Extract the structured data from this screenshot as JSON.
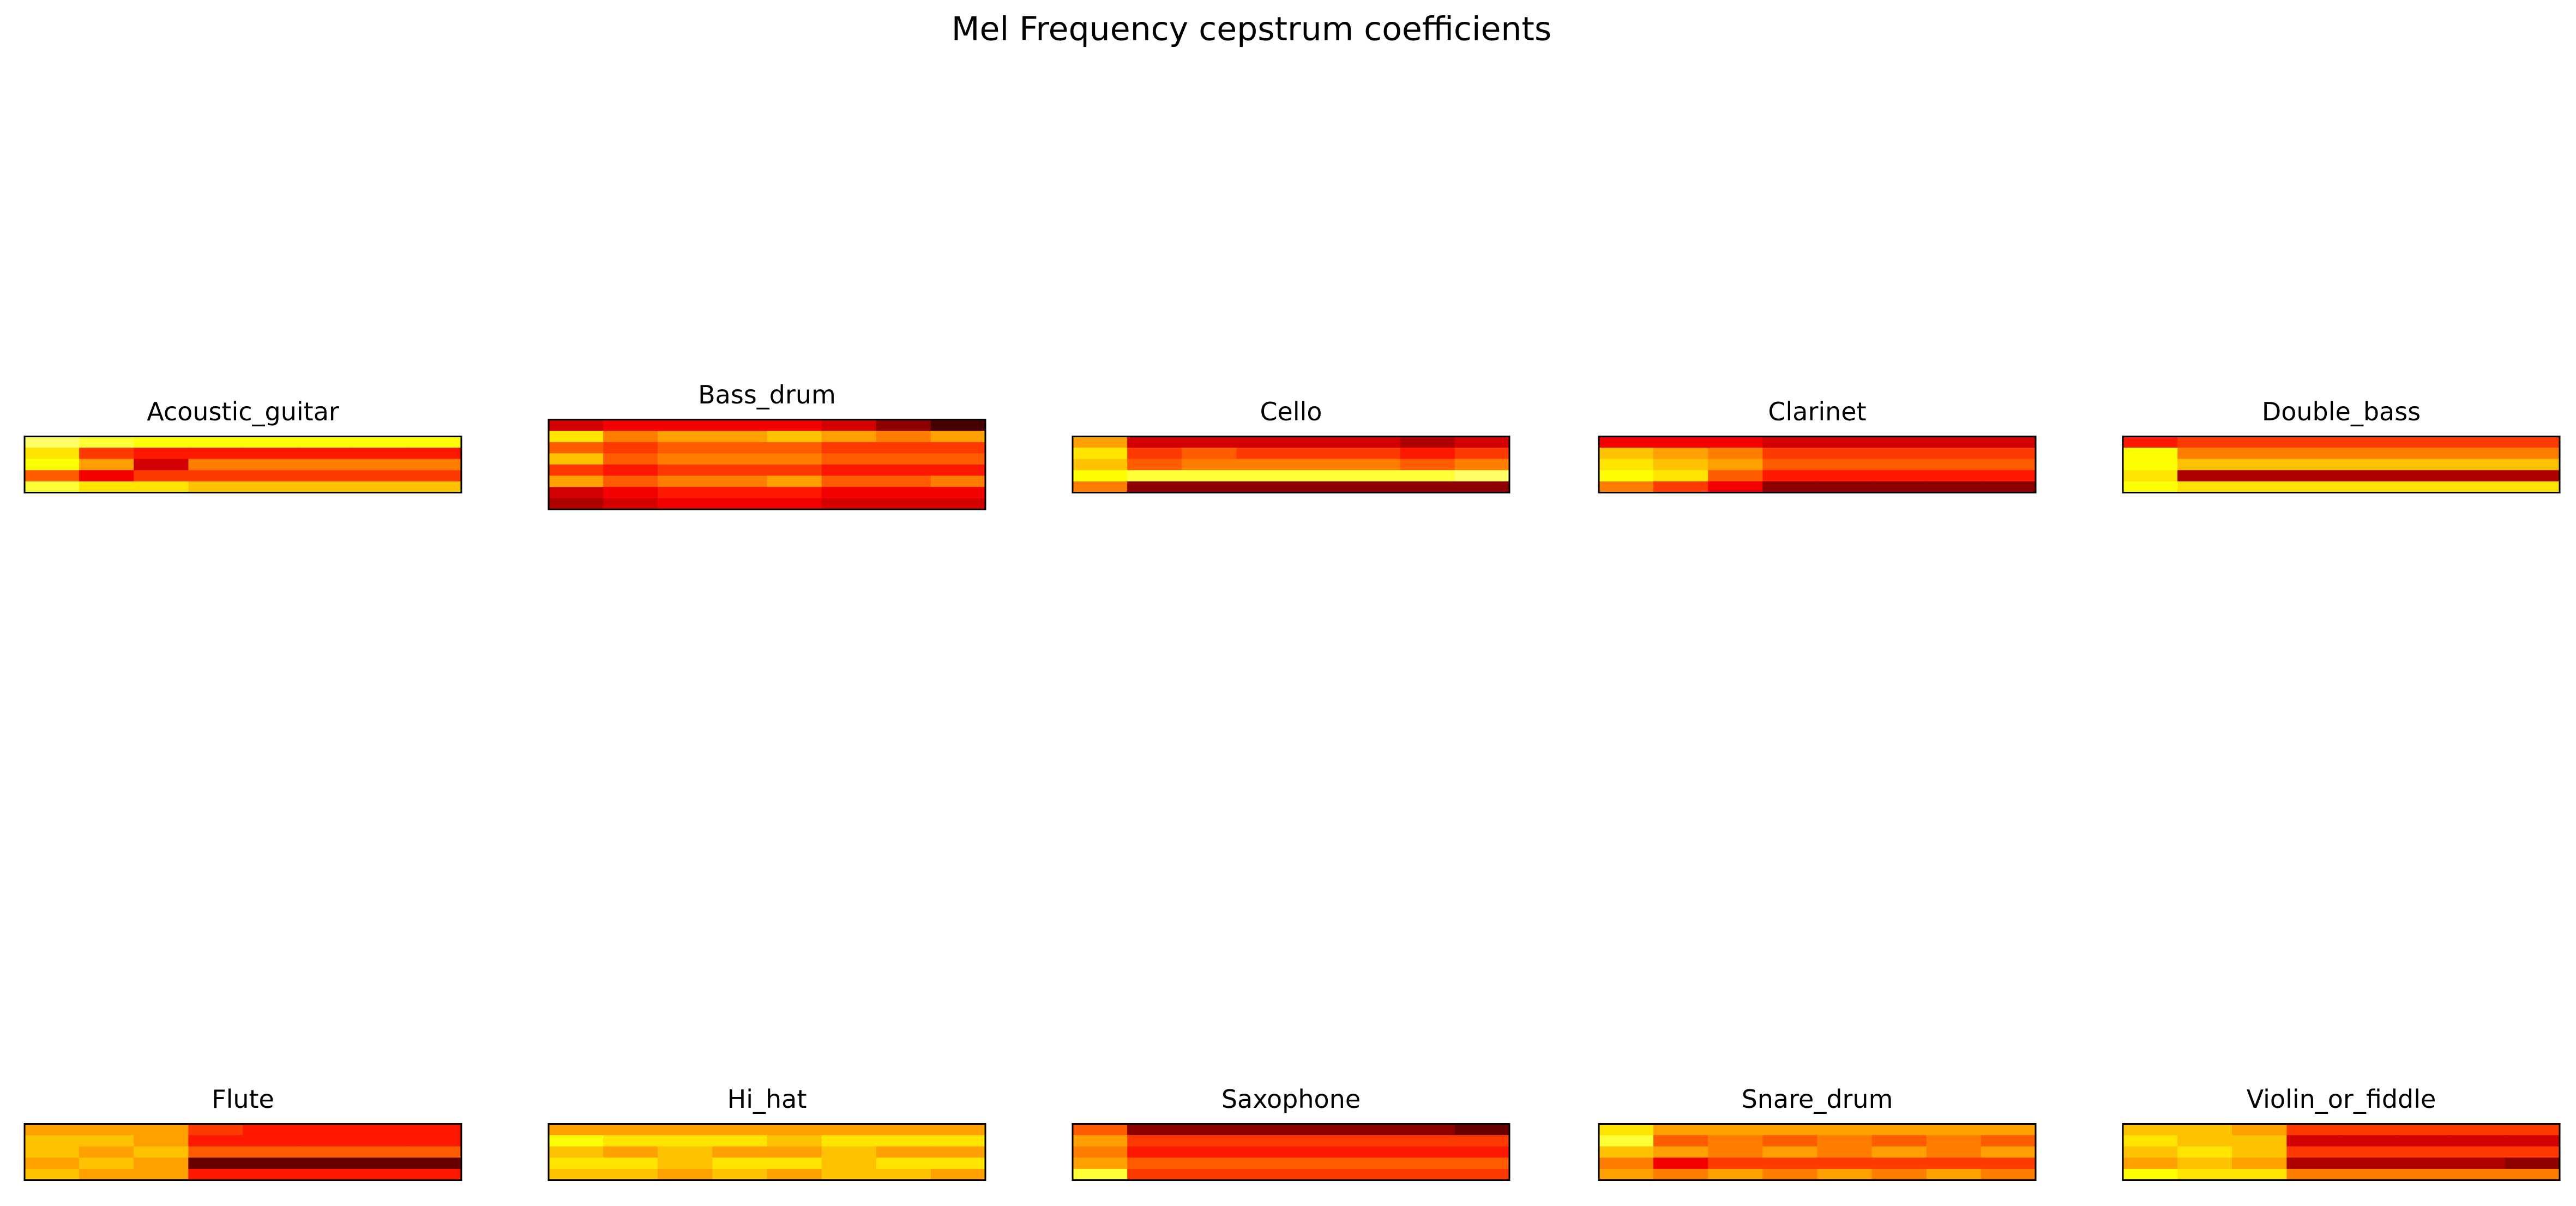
{
  "title": "Mel Frequency cepstrum coefficients",
  "chart_data": [
    {
      "type": "heatmap",
      "cmap": "hot",
      "title": "Acoustic_guitar",
      "values": [
        [
          0.85,
          0.8,
          0.75,
          0.75,
          0.75,
          0.75,
          0.75,
          0.75
        ],
        [
          0.7,
          0.45,
          0.4,
          0.4,
          0.4,
          0.4,
          0.4,
          0.4
        ],
        [
          0.75,
          0.6,
          0.3,
          0.55,
          0.55,
          0.55,
          0.55,
          0.55
        ],
        [
          0.5,
          0.35,
          0.45,
          0.45,
          0.45,
          0.45,
          0.45,
          0.45
        ],
        [
          0.8,
          0.7,
          0.7,
          0.65,
          0.65,
          0.65,
          0.65,
          0.65
        ]
      ]
    },
    {
      "type": "heatmap",
      "cmap": "hot",
      "title": "Bass_drum",
      "values": [
        [
          0.3,
          0.35,
          0.35,
          0.35,
          0.35,
          0.3,
          0.2,
          0.1
        ],
        [
          0.7,
          0.55,
          0.6,
          0.6,
          0.65,
          0.6,
          0.55,
          0.6
        ],
        [
          0.5,
          0.45,
          0.5,
          0.5,
          0.5,
          0.45,
          0.45,
          0.45
        ],
        [
          0.65,
          0.5,
          0.55,
          0.55,
          0.55,
          0.5,
          0.5,
          0.5
        ],
        [
          0.45,
          0.4,
          0.45,
          0.45,
          0.45,
          0.4,
          0.4,
          0.4
        ],
        [
          0.6,
          0.5,
          0.55,
          0.55,
          0.6,
          0.5,
          0.5,
          0.55
        ],
        [
          0.3,
          0.35,
          0.4,
          0.4,
          0.4,
          0.35,
          0.35,
          0.35
        ],
        [
          0.25,
          0.3,
          0.35,
          0.35,
          0.35,
          0.3,
          0.3,
          0.3
        ]
      ]
    },
    {
      "type": "heatmap",
      "cmap": "hot",
      "title": "Cello",
      "values": [
        [
          0.6,
          0.3,
          0.3,
          0.3,
          0.3,
          0.3,
          0.25,
          0.3
        ],
        [
          0.7,
          0.45,
          0.5,
          0.45,
          0.45,
          0.45,
          0.4,
          0.45
        ],
        [
          0.65,
          0.5,
          0.55,
          0.55,
          0.55,
          0.55,
          0.5,
          0.55
        ],
        [
          0.75,
          0.8,
          0.8,
          0.8,
          0.8,
          0.8,
          0.8,
          0.85
        ],
        [
          0.55,
          0.2,
          0.2,
          0.2,
          0.2,
          0.2,
          0.2,
          0.2
        ]
      ]
    },
    {
      "type": "heatmap",
      "cmap": "hot",
      "title": "Clarinet",
      "values": [
        [
          0.35,
          0.35,
          0.35,
          0.3,
          0.3,
          0.3,
          0.3,
          0.3
        ],
        [
          0.65,
          0.6,
          0.55,
          0.45,
          0.45,
          0.45,
          0.45,
          0.45
        ],
        [
          0.7,
          0.65,
          0.6,
          0.5,
          0.5,
          0.5,
          0.5,
          0.5
        ],
        [
          0.75,
          0.7,
          0.5,
          0.4,
          0.4,
          0.4,
          0.4,
          0.4
        ],
        [
          0.55,
          0.45,
          0.35,
          0.2,
          0.2,
          0.2,
          0.2,
          0.2
        ]
      ]
    },
    {
      "type": "heatmap",
      "cmap": "hot",
      "title": "Double_bass",
      "values": [
        [
          0.4,
          0.45,
          0.45,
          0.45,
          0.45,
          0.45,
          0.45,
          0.45
        ],
        [
          0.75,
          0.55,
          0.55,
          0.55,
          0.55,
          0.55,
          0.55,
          0.55
        ],
        [
          0.75,
          0.65,
          0.65,
          0.65,
          0.65,
          0.65,
          0.65,
          0.65
        ],
        [
          0.7,
          0.25,
          0.25,
          0.25,
          0.25,
          0.25,
          0.25,
          0.25
        ],
        [
          0.75,
          0.7,
          0.7,
          0.7,
          0.7,
          0.7,
          0.7,
          0.7
        ]
      ]
    },
    {
      "type": "heatmap",
      "cmap": "hot",
      "title": "Flute",
      "values": [
        [
          0.6,
          0.6,
          0.6,
          0.45,
          0.4,
          0.4,
          0.4,
          0.4
        ],
        [
          0.65,
          0.65,
          0.6,
          0.4,
          0.4,
          0.4,
          0.4,
          0.4
        ],
        [
          0.65,
          0.6,
          0.65,
          0.5,
          0.5,
          0.5,
          0.5,
          0.5
        ],
        [
          0.6,
          0.65,
          0.6,
          0.15,
          0.15,
          0.15,
          0.15,
          0.15
        ],
        [
          0.65,
          0.6,
          0.6,
          0.4,
          0.4,
          0.4,
          0.4,
          0.4
        ]
      ]
    },
    {
      "type": "heatmap",
      "cmap": "hot",
      "title": "Hi_hat",
      "values": [
        [
          0.6,
          0.6,
          0.6,
          0.6,
          0.6,
          0.6,
          0.6,
          0.6
        ],
        [
          0.75,
          0.7,
          0.7,
          0.7,
          0.65,
          0.7,
          0.7,
          0.7
        ],
        [
          0.65,
          0.6,
          0.65,
          0.6,
          0.6,
          0.65,
          0.6,
          0.6
        ],
        [
          0.7,
          0.7,
          0.65,
          0.7,
          0.7,
          0.65,
          0.7,
          0.7
        ],
        [
          0.65,
          0.65,
          0.6,
          0.65,
          0.6,
          0.65,
          0.65,
          0.6
        ]
      ]
    },
    {
      "type": "heatmap",
      "cmap": "hot",
      "title": "Saxophone",
      "values": [
        [
          0.5,
          0.2,
          0.2,
          0.2,
          0.2,
          0.2,
          0.2,
          0.15
        ],
        [
          0.6,
          0.45,
          0.45,
          0.45,
          0.45,
          0.45,
          0.45,
          0.45
        ],
        [
          0.55,
          0.4,
          0.4,
          0.4,
          0.4,
          0.4,
          0.4,
          0.4
        ],
        [
          0.6,
          0.5,
          0.5,
          0.5,
          0.5,
          0.5,
          0.5,
          0.5
        ],
        [
          0.8,
          0.45,
          0.45,
          0.45,
          0.45,
          0.45,
          0.45,
          0.45
        ]
      ]
    },
    {
      "type": "heatmap",
      "cmap": "hot",
      "title": "Snare_drum",
      "values": [
        [
          0.7,
          0.6,
          0.6,
          0.6,
          0.6,
          0.6,
          0.6,
          0.6
        ],
        [
          0.8,
          0.5,
          0.55,
          0.5,
          0.55,
          0.5,
          0.55,
          0.5
        ],
        [
          0.65,
          0.6,
          0.55,
          0.6,
          0.55,
          0.6,
          0.55,
          0.6
        ],
        [
          0.55,
          0.35,
          0.45,
          0.45,
          0.45,
          0.45,
          0.45,
          0.45
        ],
        [
          0.6,
          0.55,
          0.6,
          0.55,
          0.6,
          0.55,
          0.6,
          0.55
        ]
      ]
    },
    {
      "type": "heatmap",
      "cmap": "hot",
      "title": "Violin_or_fiddle",
      "values": [
        [
          0.65,
          0.65,
          0.6,
          0.45,
          0.45,
          0.45,
          0.45,
          0.45
        ],
        [
          0.7,
          0.65,
          0.65,
          0.3,
          0.3,
          0.3,
          0.3,
          0.3
        ],
        [
          0.65,
          0.7,
          0.65,
          0.45,
          0.45,
          0.45,
          0.45,
          0.45
        ],
        [
          0.6,
          0.65,
          0.6,
          0.25,
          0.25,
          0.25,
          0.25,
          0.2
        ],
        [
          0.75,
          0.7,
          0.7,
          0.55,
          0.55,
          0.55,
          0.55,
          0.55
        ]
      ]
    }
  ]
}
